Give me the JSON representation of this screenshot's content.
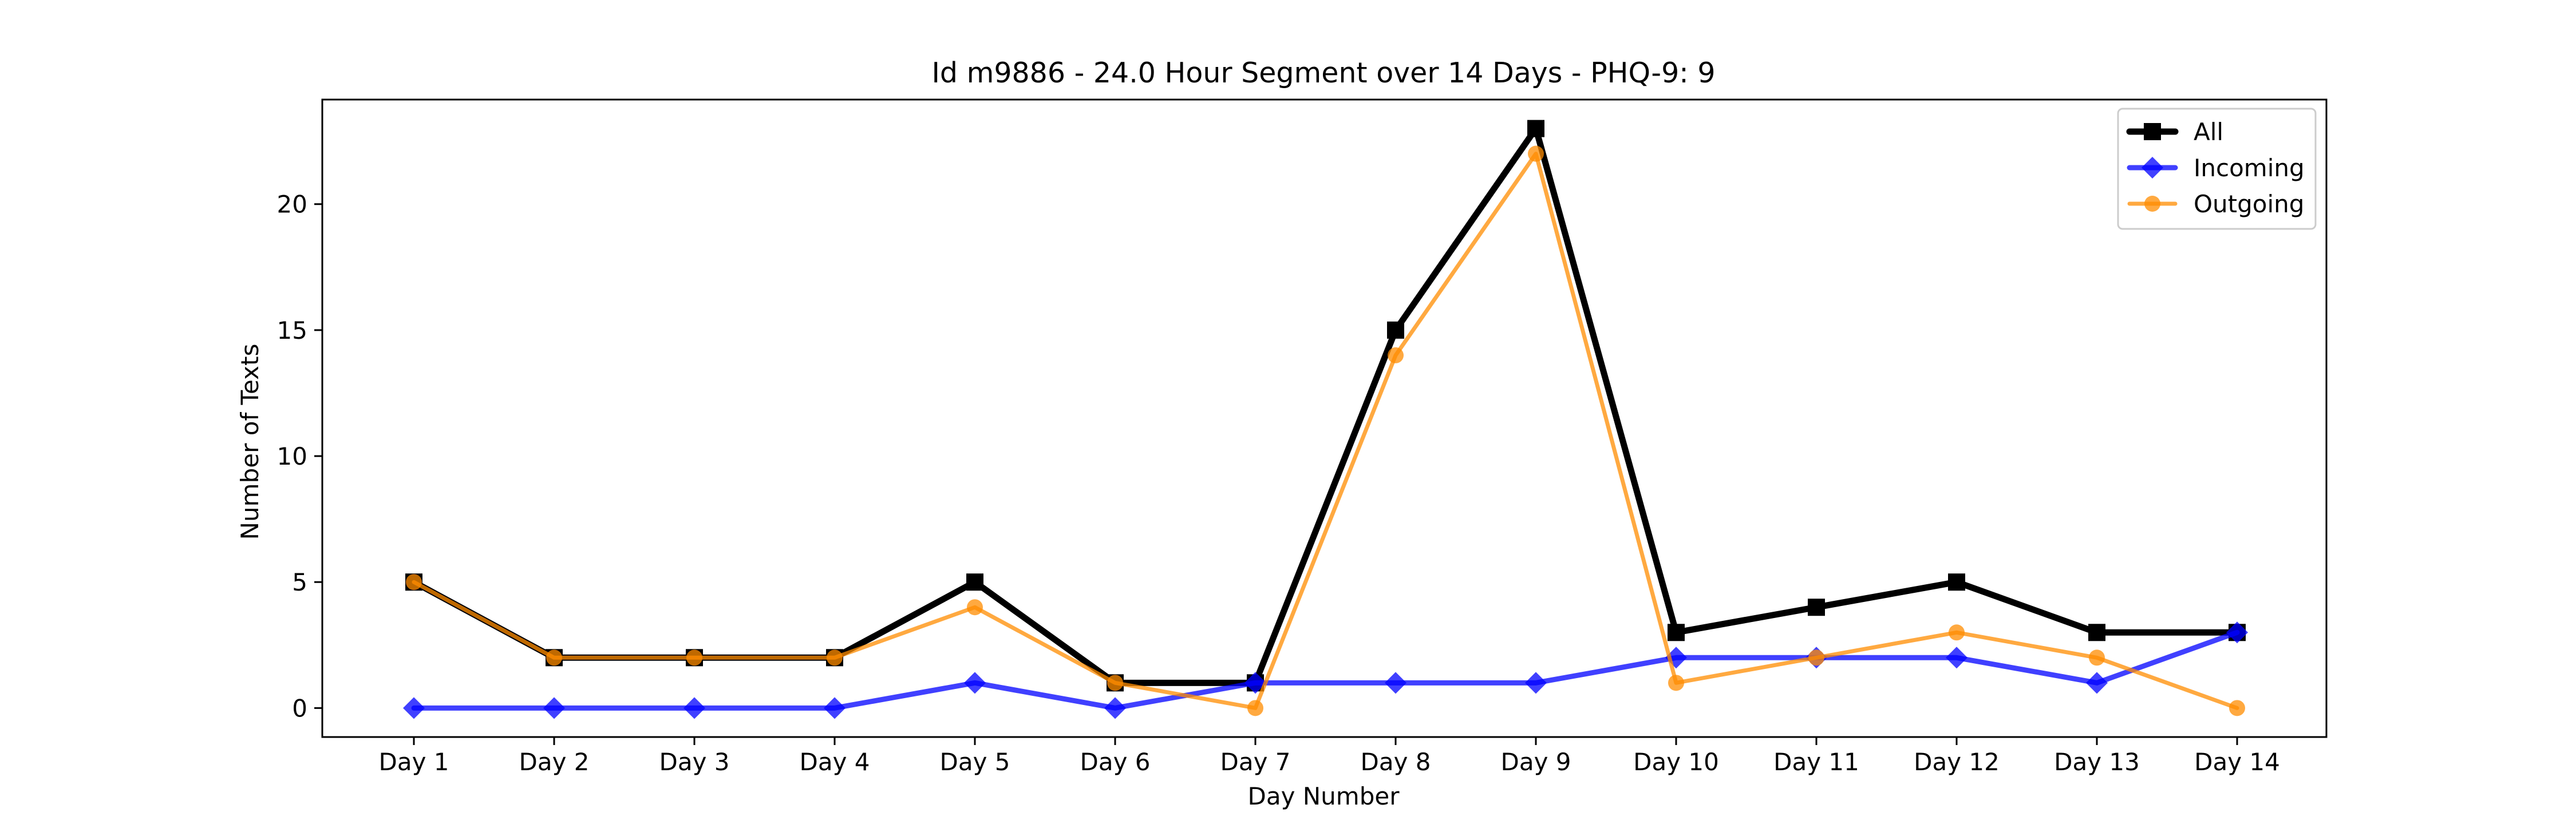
{
  "chart_data": {
    "type": "line",
    "title": "Id m9886 - 24.0 Hour Segment over 14 Days - PHQ-9: 9",
    "xlabel": "Day Number",
    "ylabel": "Number of Texts",
    "categories": [
      "Day 1",
      "Day 2",
      "Day 3",
      "Day 4",
      "Day 5",
      "Day 6",
      "Day 7",
      "Day 8",
      "Day 9",
      "Day 10",
      "Day 11",
      "Day 12",
      "Day 13",
      "Day 14"
    ],
    "ylim": [
      -1.15,
      24.15
    ],
    "yticks": [
      0,
      5,
      10,
      15,
      20
    ],
    "grid": false,
    "legend_position": "upper right",
    "series": [
      {
        "name": "All",
        "values": [
          5,
          2,
          2,
          2,
          5,
          1,
          1,
          15,
          23,
          3,
          4,
          5,
          3,
          3
        ],
        "color": "#000000",
        "marker": "square"
      },
      {
        "name": "Incoming",
        "values": [
          0,
          0,
          0,
          0,
          1,
          0,
          1,
          1,
          1,
          2,
          2,
          2,
          1,
          3
        ],
        "color": "#0000ff",
        "marker": "diamond"
      },
      {
        "name": "Outgoing",
        "values": [
          5,
          2,
          2,
          2,
          4,
          1,
          0,
          14,
          22,
          1,
          2,
          3,
          2,
          0
        ],
        "color": "#ff8c00",
        "marker": "circle"
      }
    ]
  }
}
